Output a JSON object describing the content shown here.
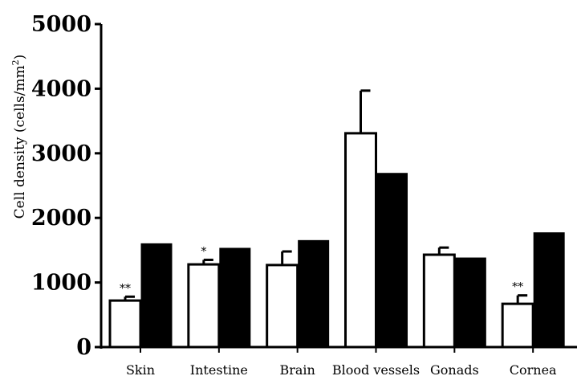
{
  "chart_data": {
    "type": "bar",
    "title": "",
    "xlabel": "",
    "ylabel": "Cell density (cells/mm",
    "ylabel_sup": "2",
    "ylabel_close": ")",
    "ylim": [
      0,
      5000
    ],
    "yticks": [
      "0",
      "1000",
      "2000",
      "3000",
      "4000",
      "5000"
    ],
    "categories": [
      "Skin",
      "Intestine",
      "Brain",
      "Blood vessels",
      "Gonads",
      "Cornea"
    ],
    "series": [
      {
        "fill": "#ffffff",
        "values": [
          720,
          1280,
          1270,
          3310,
          1430,
          670
        ],
        "errors": [
          60,
          70,
          210,
          660,
          110,
          130
        ],
        "annotations": [
          "**",
          "*",
          "",
          "",
          "",
          "**"
        ]
      },
      {
        "fill": "#000000",
        "values": [
          1600,
          1530,
          1650,
          2690,
          1380,
          1770
        ]
      }
    ],
    "grid": false,
    "legend": "none"
  }
}
